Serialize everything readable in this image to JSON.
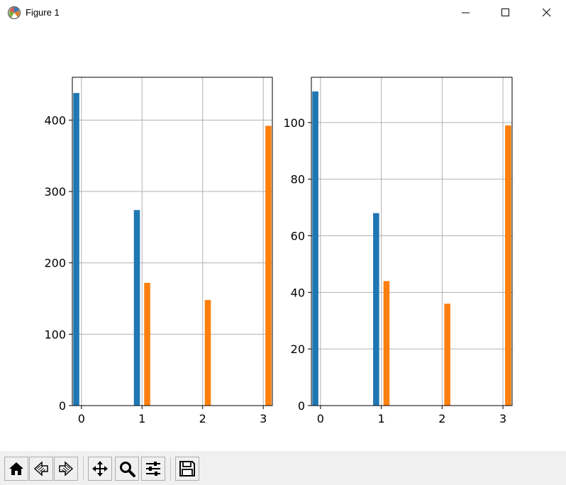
{
  "window": {
    "title": "Figure 1"
  },
  "chart_data": [
    {
      "type": "bar",
      "categories": [
        "0",
        "1",
        "2",
        "3"
      ],
      "series": [
        {
          "values": [
            438,
            274,
            0,
            0
          ],
          "color": "#1f77b4"
        },
        {
          "values": [
            0,
            172,
            148,
            392
          ],
          "color": "#ff7f0e"
        }
      ],
      "xlim": [
        -0.15,
        3.15
      ],
      "ylim": [
        0,
        460
      ],
      "xticks": [
        0,
        1,
        2,
        3
      ],
      "yticks": [
        0,
        100,
        200,
        300,
        400
      ],
      "grid": true
    },
    {
      "type": "bar",
      "categories": [
        "0",
        "1",
        "2",
        "3"
      ],
      "series": [
        {
          "values": [
            111,
            68,
            0,
            0
          ],
          "color": "#1f77b4"
        },
        {
          "values": [
            0,
            44,
            36,
            99
          ],
          "color": "#ff7f0e"
        }
      ],
      "xlim": [
        -0.15,
        3.15
      ],
      "ylim": [
        0,
        116
      ],
      "xticks": [
        0,
        1,
        2,
        3
      ],
      "yticks": [
        0,
        20,
        40,
        60,
        80,
        100
      ],
      "grid": true
    }
  ],
  "toolbar": {
    "buttons": [
      "home-icon",
      "back-icon",
      "forward-icon",
      "pan-icon",
      "zoom-icon",
      "configure-icon",
      "save-icon"
    ]
  }
}
